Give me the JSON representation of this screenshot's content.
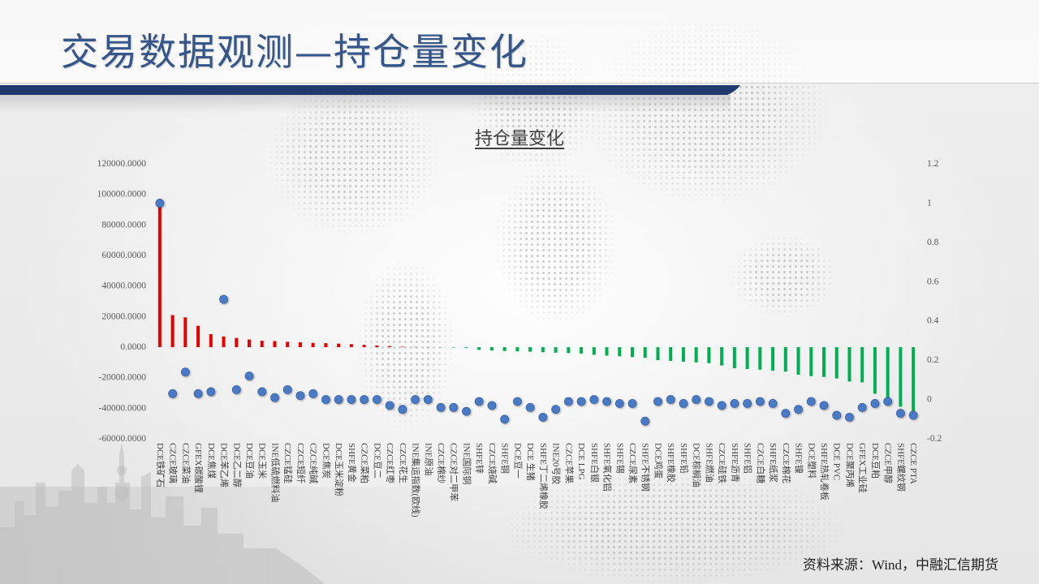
{
  "slide": {
    "title": "交易数据观测—持仓量变化",
    "source": "资料来源：Wind，中融汇信期货"
  },
  "colors": {
    "title_text": "#35568a",
    "accent_band": "#1f3a6e",
    "positive_bar": "#e60000",
    "negative_bar": "#00b050",
    "dot": "#4a7ac4",
    "dot_stroke": "#3a64a8"
  },
  "chart_data": {
    "type": "bar",
    "title": "持仓量变化",
    "categories": [
      "DCE铁矿石",
      "CZCE玻璃",
      "CZCE菜油",
      "GFEX碳酸锂",
      "DCE焦煤",
      "DCE苯乙烯",
      "DCE乙二醇",
      "DCE豆油",
      "DCE玉米",
      "INE低硫燃料油",
      "CZCE锰硅",
      "CZCE短纤",
      "CZCE纯碱",
      "DCE焦炭",
      "DCE玉米淀粉",
      "SHFE黄金",
      "CZCE菜粕",
      "DCE豆二",
      "CZCE红枣",
      "CZCE花生",
      "INE集运指数(欧线)",
      "INE原油",
      "CZCE棉纱",
      "CZCE对二甲苯",
      "INE国际铜",
      "SHFE锌",
      "CZCE烧碱",
      "SHFE铜",
      "DCE豆一",
      "DCE 生猪",
      "SHFE丁二烯橡胶",
      "INE20号胶",
      "CZCE苹果",
      "DCE LPG",
      "SHFE白银",
      "SHFE氧化铝",
      "SHFE锡",
      "CZCE尿素",
      "SHFE不锈钢",
      "DCE鸡蛋",
      "SHFE橡胶",
      "SHFE铅",
      "DCE棕榈油",
      "SHFE燃油",
      "CZCE硅铁",
      "SHFE沥青",
      "SHFE铝",
      "CZCE白糖",
      "SHFE纸浆",
      "CZCE棉花",
      "SHFE镍",
      "DCE塑料",
      "SHFE热轧卷板",
      "DCE PVC",
      "DCE聚丙烯",
      "GFEX工业硅",
      "DCE豆粕",
      "CZCE甲醇",
      "SHFE螺纹钢",
      "CZCE PTA"
    ],
    "series": [
      {
        "type": "bar",
        "y_axis": "left",
        "values": [
          94000,
          21000,
          19500,
          14000,
          8500,
          7000,
          6000,
          5000,
          4200,
          4000,
          3500,
          3200,
          2800,
          2600,
          2300,
          2000,
          1500,
          1100,
          700,
          300,
          100,
          -100,
          -200,
          -300,
          -500,
          -1800,
          -2200,
          -2500,
          -2800,
          -3000,
          -3300,
          -3600,
          -3900,
          -4200,
          -5000,
          -5500,
          -6000,
          -6500,
          -7000,
          -8500,
          -9000,
          -9500,
          -10000,
          -10500,
          -12000,
          -13800,
          -14300,
          -14800,
          -15300,
          -16000,
          -18000,
          -19000,
          -19500,
          -20500,
          -22500,
          -23000,
          -30500,
          -33500,
          -39000,
          -44000
        ]
      },
      {
        "type": "scatter",
        "y_axis": "right",
        "values": [
          1.0,
          0.03,
          0.14,
          0.03,
          0.04,
          0.51,
          0.05,
          0.12,
          0.04,
          0.01,
          0.05,
          0.02,
          0.03,
          0.0,
          0.0,
          0.0,
          0.0,
          0.0,
          -0.03,
          -0.05,
          0.0,
          0.0,
          -0.04,
          -0.04,
          -0.06,
          -0.01,
          -0.03,
          -0.1,
          -0.01,
          -0.04,
          -0.09,
          -0.05,
          -0.01,
          -0.01,
          0.0,
          -0.01,
          -0.02,
          -0.02,
          -0.11,
          -0.01,
          0.0,
          -0.02,
          0.0,
          -0.01,
          -0.03,
          -0.02,
          -0.02,
          -0.01,
          -0.02,
          -0.07,
          -0.05,
          -0.01,
          -0.03,
          -0.08,
          -0.09,
          -0.04,
          -0.02,
          -0.01,
          -0.07,
          -0.08
        ]
      }
    ],
    "y_left": {
      "ylim": [
        -60000,
        120000
      ],
      "ticks": [
        "120000.0000",
        "100000.0000",
        "80000.0000",
        "60000.0000",
        "40000.0000",
        "20000.0000",
        "0.0000",
        "-20000.0000",
        "-40000.0000",
        "-60000.0000"
      ]
    },
    "y_right": {
      "ylim": [
        -0.2,
        1.2
      ],
      "ticks": [
        "1.2",
        "1",
        "0.8",
        "0.6",
        "0.4",
        "0.2",
        "0",
        "-0.2"
      ]
    },
    "grid": false,
    "legend": "none"
  }
}
